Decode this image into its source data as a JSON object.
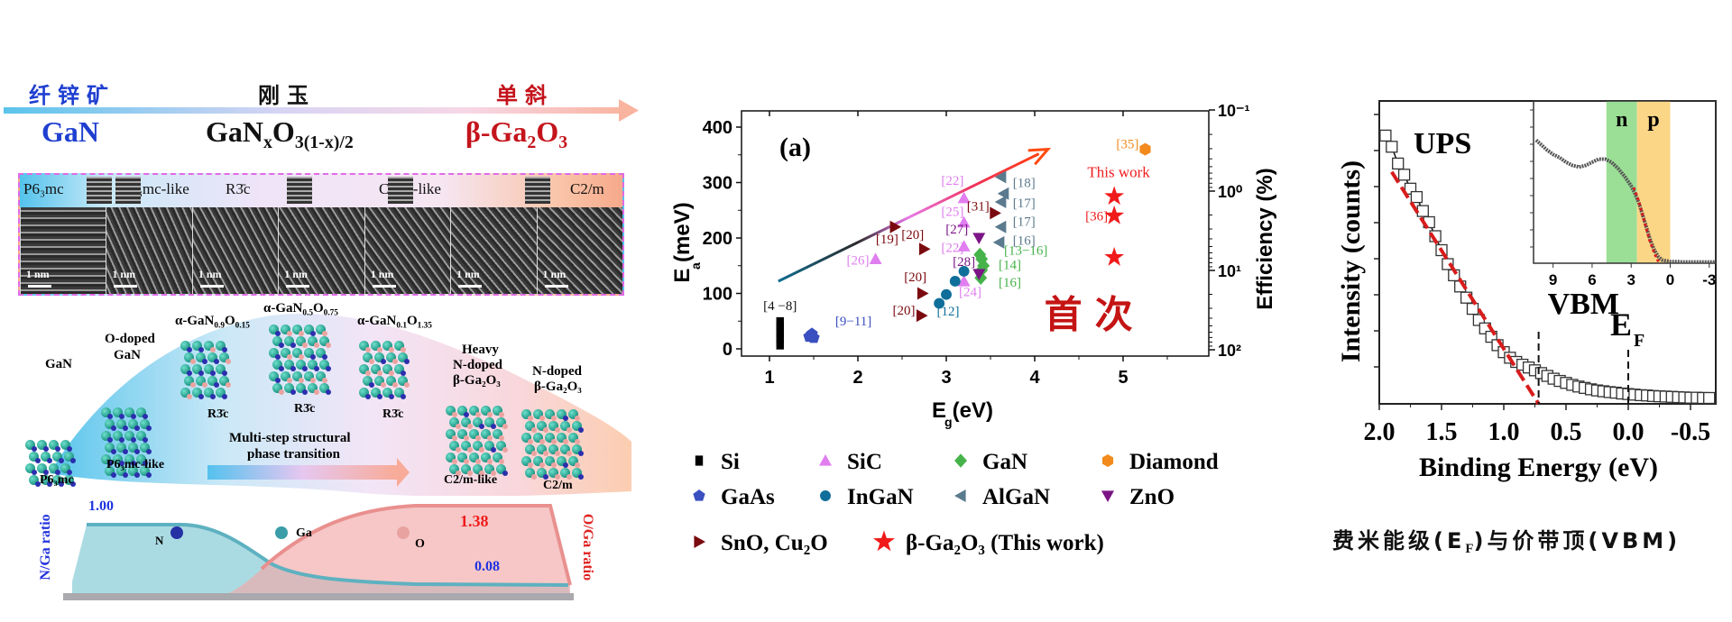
{
  "left_panel": {
    "phase_labels": {
      "wurtzite_cn": "纤锌矿",
      "corundum_cn": "刚玉",
      "monoclinic_cn": "单斜"
    },
    "compounds": {
      "gan": "GaN",
      "mid_prefix": "GaN",
      "mid_sub_x": "x",
      "mid_o": "O",
      "mid_sub_o": "3(1-x)/2",
      "beta_prefix": "β-Ga",
      "beta_sub_2": "2",
      "beta_o": "O",
      "beta_sub_3": "3"
    },
    "colors": {
      "blue": "#1f3fd0",
      "red": "#c4141c",
      "black": "#111111"
    },
    "hrtem": {
      "panels": [
        {
          "label": "P6₃mc",
          "scale": "1 nm"
        },
        {
          "label": "P6₃mc-like",
          "scale": "1 nm"
        },
        {
          "label": "",
          "scale": "1 nm"
        },
        {
          "label": "R3̄c",
          "scale": "1 nm"
        },
        {
          "label": "",
          "scale": "1 nm"
        },
        {
          "label": "C2/m-like",
          "scale": "1 nm"
        },
        {
          "label": "C2/m",
          "scale": "1 nm"
        }
      ]
    },
    "structures": [
      {
        "name": "GaN",
        "group": "P6₃mc"
      },
      {
        "name": "O-doped GaN",
        "group": "P6₃mc-like"
      },
      {
        "name": "α-GaN0.9O0.15",
        "group": "R3̄c"
      },
      {
        "name": "α-GaN0.5O0.75",
        "group": "R3̄c"
      },
      {
        "name": "α-GaN0.1O1.35",
        "group": "R3̄c"
      },
      {
        "name": "Heavy N-doped β-Ga2O3",
        "group": "C2/m-like"
      },
      {
        "name": "N-doped β-Ga2O3",
        "group": "C2/m"
      }
    ],
    "structure_text": {
      "gan": "GaN",
      "odoped_l1": "O-doped",
      "odoped_l2": "GaN",
      "a1": "α-GaN",
      "a1_s1": "0.9",
      "a1_o": "O",
      "a1_s2": "0.15",
      "a2": "α-GaN",
      "a2_s1": "0.5",
      "a2_o": "O",
      "a2_s2": "0.75",
      "a3": "α-GaN",
      "a3_s1": "0.1",
      "a3_o": "O",
      "a3_s2": "1.35",
      "heavy_l1": "Heavy",
      "heavy_l2": "N-doped",
      "heavy_l3": "β-Ga₂O₃",
      "ndoped_l1": "N-doped",
      "ndoped_l2": "β-Ga₂O₃",
      "g_p63mc": "P6₃mc",
      "g_p63mc_like": "P6₃mc-like",
      "g_r3c": "R3̄c",
      "g_c2m_like": "C2/m-like",
      "g_c2m": "C2/m",
      "transition_l1": "Multi-step structural",
      "transition_l2": "phase transition"
    },
    "ratio_panel": {
      "n_ga_label": "N/Ga ratio",
      "o_ga_label": "O/Ga ratio",
      "n_start": "1.00",
      "n_end": "0.08",
      "o_end": "1.38",
      "atom_n": "N",
      "atom_ga": "Ga",
      "atom_o": "O"
    }
  },
  "chart_data": [
    {
      "type": "scatter",
      "panel_label": "(a)",
      "xlabel": "E_g (eV)",
      "ylabel": "E_a (meV)",
      "y2label": "Efficiency (%)",
      "xlim": [
        0.85,
        5.6
      ],
      "ylim": [
        -15,
        425
      ],
      "xticks": [
        1,
        2,
        3,
        4,
        5
      ],
      "yticks": [
        0,
        100,
        200,
        300,
        400
      ],
      "y2ticks": [
        "10⁻¹",
        "10⁰",
        "10¹",
        "10²"
      ],
      "annotation_cn": "首次",
      "this_work_label": "This work",
      "trend_arrow": {
        "from": [
          1.1,
          122
        ],
        "to": [
          4.15,
          360
        ]
      },
      "series": [
        {
          "name": "Si",
          "marker": "square",
          "color": "#000000",
          "points": [
            [
              1.12,
              8
            ],
            [
              1.12,
              20
            ],
            [
              1.12,
              30
            ],
            [
              1.12,
              40
            ],
            [
              1.12,
              48
            ]
          ],
          "labels": [
            {
              "text": "[4 −8]",
              "x": 1.12,
              "y": 70
            }
          ]
        },
        {
          "name": "GaAs",
          "marker": "pentagon",
          "color": "#3a4fc0",
          "points": [
            [
              1.45,
              22
            ],
            [
              1.48,
              27
            ],
            [
              1.5,
              20
            ]
          ],
          "labels": [
            {
              "text": "[9−11]",
              "x": 1.95,
              "y": 42
            }
          ]
        },
        {
          "name": "SiC",
          "marker": "triangle-up",
          "color": "#e07ef0",
          "points": [
            [
              2.2,
              162
            ],
            [
              3.2,
              272
            ],
            [
              3.2,
              228
            ],
            [
              3.2,
              185
            ],
            [
              3.2,
              122
            ]
          ],
          "labels": [
            {
              "text": "[26]",
              "x": 2.0,
              "y": 152
            },
            {
              "text": "[22]",
              "x": 3.07,
              "y": 296
            },
            {
              "text": "[25]",
              "x": 3.07,
              "y": 240
            },
            {
              "text": "[22]",
              "x": 3.07,
              "y": 175
            },
            {
              "text": "[24]",
              "x": 3.27,
              "y": 95
            }
          ]
        },
        {
          "name": "InGaN",
          "marker": "circle",
          "color": "#106f9a",
          "points": [
            [
              2.92,
              82
            ],
            [
              3.0,
              98
            ],
            [
              3.1,
              122
            ],
            [
              3.2,
              140
            ]
          ],
          "labels": [
            {
              "text": "[12]",
              "x": 3.02,
              "y": 60
            }
          ]
        },
        {
          "name": "GaN",
          "marker": "diamond",
          "color": "#46b34a",
          "points": [
            [
              3.38,
              170
            ],
            [
              3.4,
              162
            ],
            [
              3.42,
              150
            ],
            [
              3.4,
              142
            ],
            [
              3.39,
              128
            ]
          ],
          "labels": [
            {
              "text": "[13−16]",
              "x": 3.9,
              "y": 170
            },
            {
              "text": "[14]",
              "x": 3.72,
              "y": 144
            },
            {
              "text": "[16]",
              "x": 3.72,
              "y": 112
            }
          ]
        },
        {
          "name": "AlGaN",
          "marker": "triangle-left",
          "color": "#5b7a8e",
          "points": [
            [
              3.62,
              310
            ],
            [
              3.65,
              280
            ],
            [
              3.62,
              265
            ],
            [
              3.62,
              220
            ],
            [
              3.6,
              192
            ]
          ],
          "labels": [
            {
              "text": "[18]",
              "x": 3.88,
              "y": 292
            },
            {
              "text": "[17]",
              "x": 3.88,
              "y": 255
            },
            {
              "text": "[17]",
              "x": 3.88,
              "y": 222
            },
            {
              "text": "[16]",
              "x": 3.88,
              "y": 188
            }
          ]
        },
        {
          "name": "ZnO",
          "marker": "triangle-down",
          "color": "#7b1586",
          "points": [
            [
              3.37,
              200
            ],
            [
              3.37,
              135
            ]
          ],
          "labels": [
            {
              "text": "[27]",
              "x": 3.12,
              "y": 208
            },
            {
              "text": "[28]",
              "x": 3.2,
              "y": 150
            }
          ]
        },
        {
          "name": "SnO, Cu2O",
          "marker": "triangle-right",
          "color": "#7a0a0f",
          "points": [
            [
              2.42,
              220
            ],
            [
              2.75,
              180
            ],
            [
              2.73,
              100
            ],
            [
              2.72,
              60
            ],
            [
              3.55,
              245
            ]
          ],
          "labels": [
            {
              "text": "[19]",
              "x": 2.33,
              "y": 190
            },
            {
              "text": "[20]",
              "x": 2.62,
              "y": 198
            },
            {
              "text": "[20]",
              "x": 2.65,
              "y": 122
            },
            {
              "text": "[20]",
              "x": 2.52,
              "y": 62
            },
            {
              "text": "[31]",
              "x": 3.36,
              "y": 250
            }
          ]
        },
        {
          "name": "Diamond",
          "marker": "hexagon",
          "color": "#f28a1c",
          "points": [
            [
              5.25,
              360
            ]
          ],
          "labels": [
            {
              "text": "[35]",
              "x": 5.05,
              "y": 362
            }
          ]
        },
        {
          "name": "β-Ga2O3 (This work)",
          "marker": "star",
          "color": "#f01a1a",
          "points": [
            [
              4.9,
              275
            ],
            [
              4.9,
              240
            ],
            [
              4.9,
              165
            ]
          ],
          "labels": [
            {
              "text": "[36]",
              "x": 4.7,
              "y": 232
            }
          ]
        }
      ],
      "legend": [
        [
          "Si",
          "SiC",
          "GaN",
          "Diamond"
        ],
        [
          "GaAs",
          "InGaN",
          "AlGaN",
          "ZnO"
        ],
        [
          "SnO, Cu₂O",
          "β-Ga₂O₃ (This work)"
        ]
      ]
    },
    {
      "type": "line",
      "title": "UPS",
      "xlabel": "Binding Energy (eV)",
      "ylabel": "Intensity (counts)",
      "xlim": [
        2.0,
        -0.65
      ],
      "xticks": [
        2.0,
        1.5,
        1.0,
        0.5,
        0.0,
        -0.5
      ],
      "tick_labels": [
        "2.0",
        "1.5",
        "1.0",
        "0.5",
        "0.0",
        "-0.5"
      ],
      "vbm": 0.72,
      "ef": 0.0,
      "vbm_label": "VBM",
      "ef_label": "E",
      "ef_sub": "F",
      "series": [
        {
          "name": "UPS data",
          "marker": "square-open",
          "x": [
            1.95,
            1.9,
            1.85,
            1.8,
            1.75,
            1.7,
            1.65,
            1.6,
            1.55,
            1.5,
            1.45,
            1.4,
            1.35,
            1.3,
            1.25,
            1.2,
            1.15,
            1.1,
            1.05,
            1.0,
            0.95,
            0.9,
            0.85,
            0.8,
            0.75,
            0.7,
            0.65,
            0.6,
            0.55,
            0.5,
            0.45,
            0.4,
            0.35,
            0.3,
            0.25,
            0.2,
            0.15,
            0.1,
            0.05,
            0.0,
            -0.05,
            -0.1,
            -0.15,
            -0.2,
            -0.25,
            -0.3,
            -0.35,
            -0.4,
            -0.45,
            -0.5,
            -0.55,
            -0.6,
            -0.65
          ],
          "y": [
            0.96,
            0.92,
            0.86,
            0.82,
            0.77,
            0.74,
            0.69,
            0.65,
            0.6,
            0.55,
            0.5,
            0.46,
            0.42,
            0.38,
            0.34,
            0.3,
            0.27,
            0.24,
            0.21,
            0.185,
            0.165,
            0.15,
            0.14,
            0.13,
            0.12,
            0.11,
            0.1,
            0.09,
            0.082,
            0.075,
            0.068,
            0.062,
            0.057,
            0.052,
            0.048,
            0.045,
            0.042,
            0.04,
            0.037,
            0.035,
            0.033,
            0.031,
            0.03,
            0.028,
            0.027,
            0.026,
            0.025,
            0.024,
            0.023,
            0.022,
            0.022,
            0.021,
            0.021
          ]
        },
        {
          "name": "linear fit",
          "style": "dashed",
          "color": "#d81c1c",
          "x": [
            1.9,
            0.72
          ],
          "y": [
            0.83,
            0.0
          ]
        }
      ],
      "inset": {
        "xticks": [
          "9",
          "6",
          "3",
          "0",
          "-3"
        ],
        "xlim": [
          10.5,
          -3.5
        ],
        "regions": [
          {
            "label": "n",
            "from": 4.9,
            "to": 2.55,
            "color": "#8fdc8a"
          },
          {
            "label": "p",
            "from": 2.55,
            "to": 0.0,
            "color": "#fcd27a"
          }
        ],
        "curve_x": [
          10.3,
          9.5,
          9,
          8.5,
          8,
          7.5,
          7,
          6.5,
          6,
          5.5,
          5,
          4.5,
          4,
          3.5,
          3,
          2.7,
          2.4,
          2.1,
          1.8,
          1.5,
          1.2,
          0.9,
          0.6,
          0.3,
          0,
          -0.5,
          -1,
          -2,
          -3,
          -3.5
        ],
        "curve_y": [
          0.78,
          0.72,
          0.69,
          0.67,
          0.64,
          0.62,
          0.61,
          0.62,
          0.64,
          0.66,
          0.66,
          0.64,
          0.6,
          0.55,
          0.49,
          0.44,
          0.38,
          0.3,
          0.22,
          0.14,
          0.08,
          0.04,
          0.02,
          0.015,
          0.01,
          0.01,
          0.008,
          0.008,
          0.008,
          0.008
        ],
        "fit_x": [
          2.8,
          2.4,
          2.0,
          1.6,
          1.2,
          0.9
        ],
        "fit_y": [
          0.48,
          0.39,
          0.27,
          0.15,
          0.06,
          0.01
        ]
      },
      "caption": "费米能级(E",
      "caption_sub": "F",
      "caption_rest": ")与价带顶(VBM)"
    }
  ]
}
